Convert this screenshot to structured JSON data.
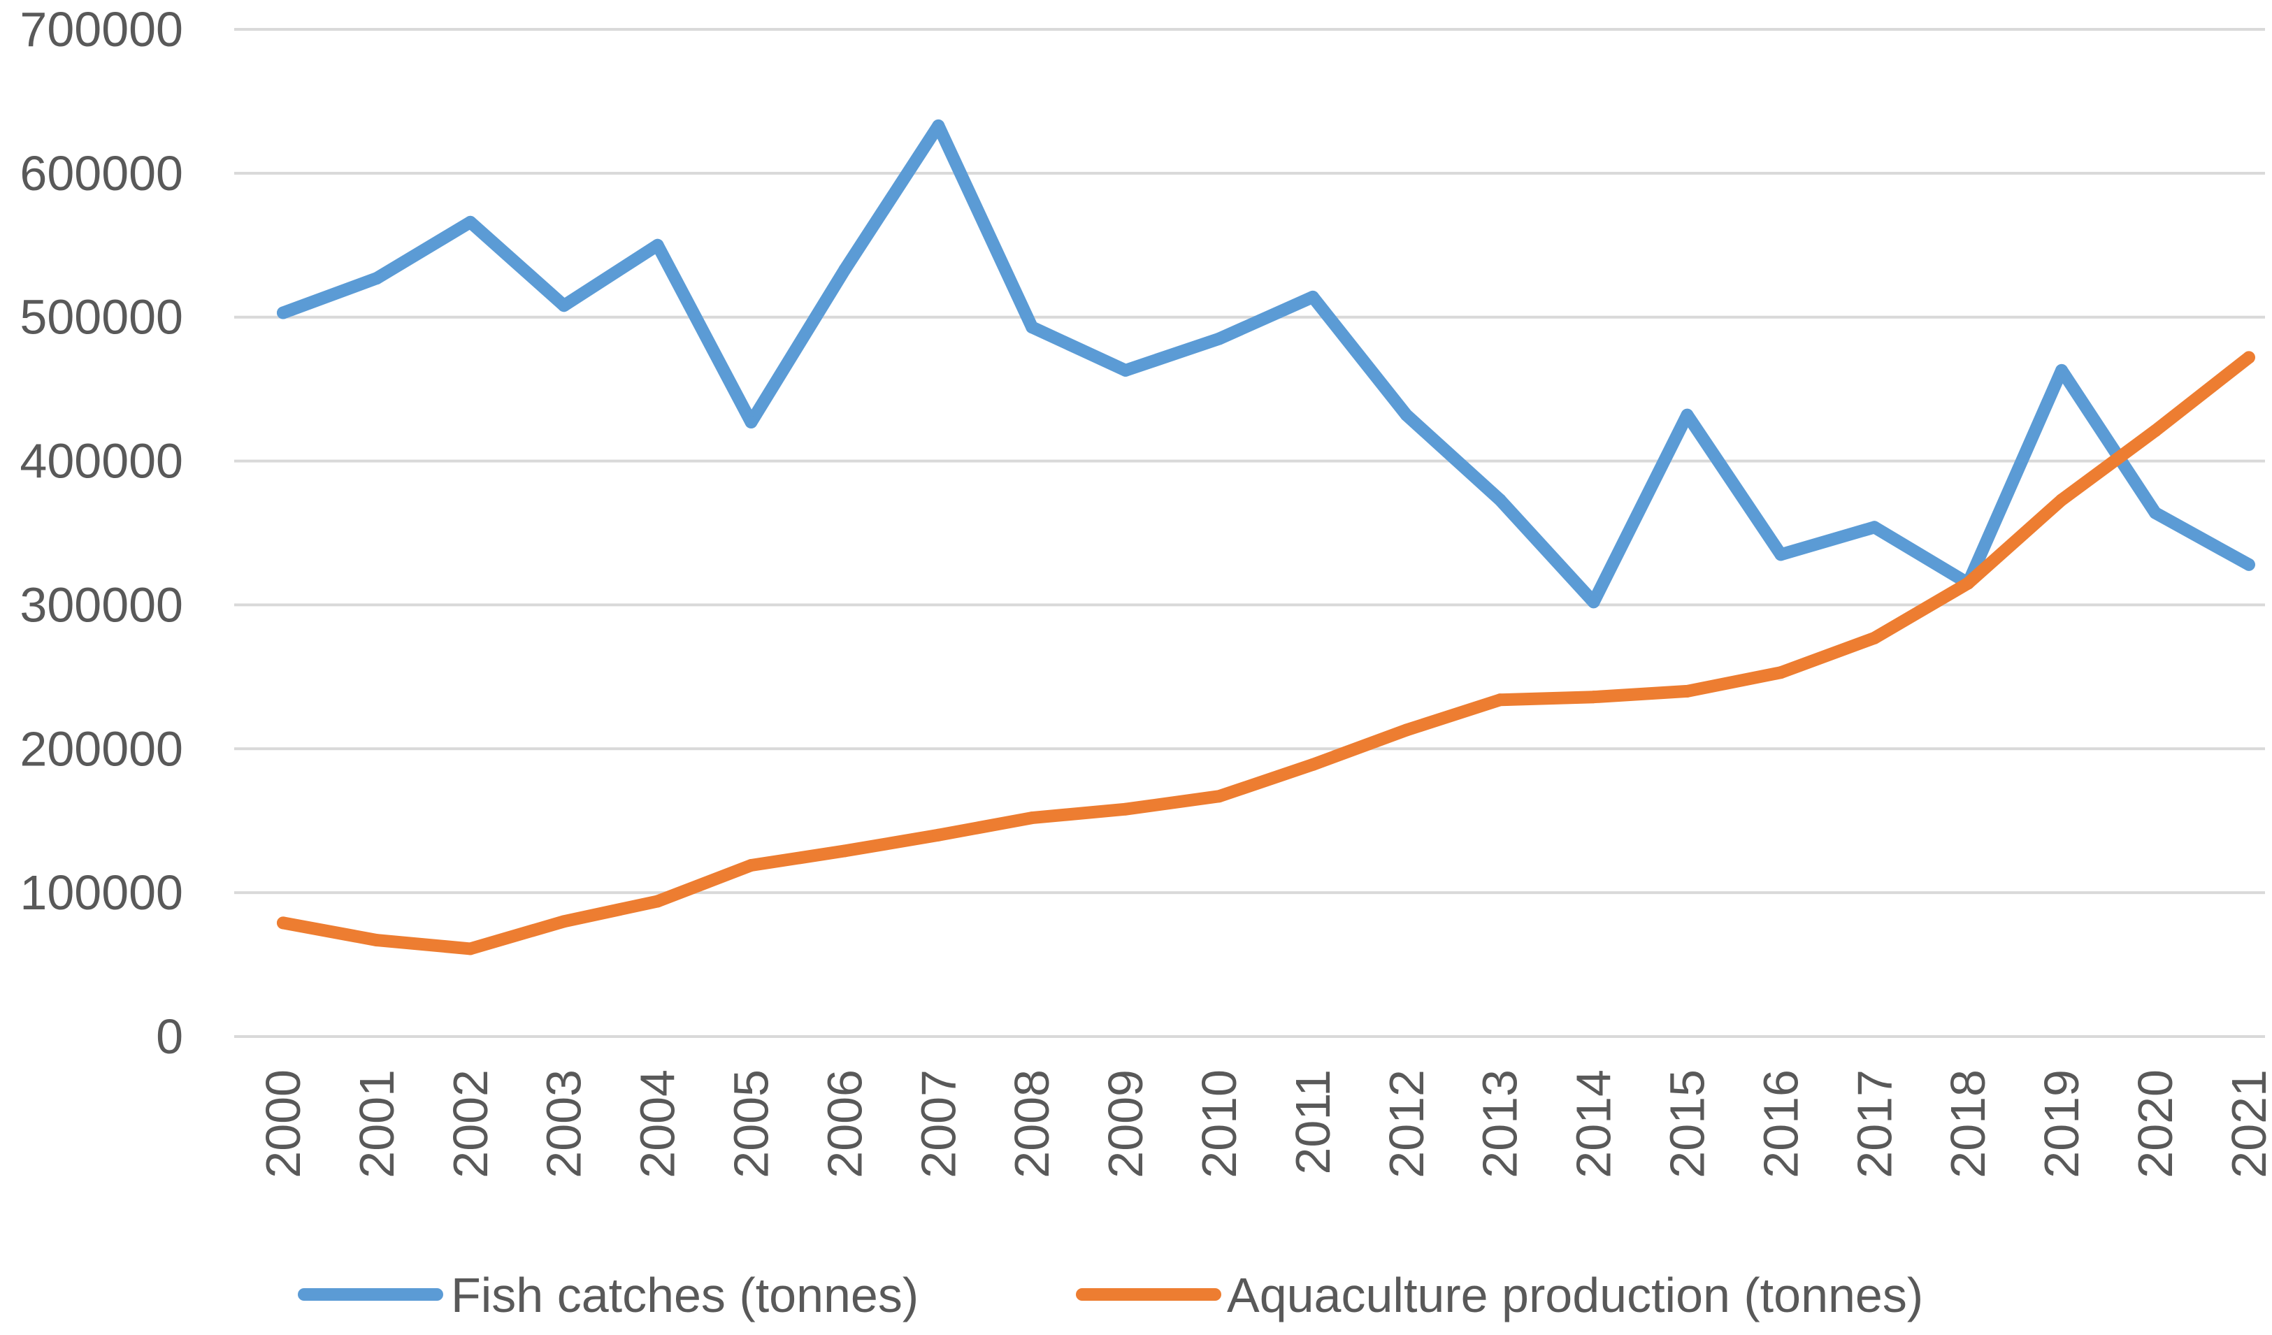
{
  "chart_data": {
    "type": "line",
    "title": "",
    "xlabel": "",
    "ylabel": "",
    "ylim": [
      0,
      700000
    ],
    "yticks": [
      0,
      100000,
      200000,
      300000,
      400000,
      500000,
      600000,
      700000
    ],
    "ytick_labels": [
      "0",
      "100000",
      "200000",
      "300000",
      "400000",
      "500000",
      "600000",
      "700000"
    ],
    "grid": true,
    "legend_position": "bottom",
    "categories": [
      "2000",
      "2001",
      "2002",
      "2003",
      "2004",
      "2005",
      "2006",
      "2007",
      "2008",
      "2009",
      "2010",
      "2011",
      "2012",
      "2013",
      "2014",
      "2015",
      "2016",
      "2017",
      "2018",
      "2019",
      "2020",
      "2021"
    ],
    "series": [
      {
        "name": "Fish catches (tonnes)",
        "color": "#5B9BD5",
        "values": [
          503000,
          527000,
          566000,
          508000,
          550000,
          427000,
          533000,
          633000,
          493000,
          463000,
          485000,
          514000,
          432000,
          373000,
          302000,
          432000,
          335000,
          354000,
          315000,
          463000,
          364000,
          328000
        ]
      },
      {
        "name": "Aquaculture production (tonnes)",
        "color": "#ED7D31",
        "values": [
          79000,
          67000,
          61000,
          80000,
          94000,
          119000,
          129000,
          140000,
          152000,
          158000,
          167000,
          189000,
          213000,
          234000,
          236000,
          240000,
          253000,
          277000,
          315000,
          373000,
          421000,
          472000
        ]
      }
    ]
  }
}
